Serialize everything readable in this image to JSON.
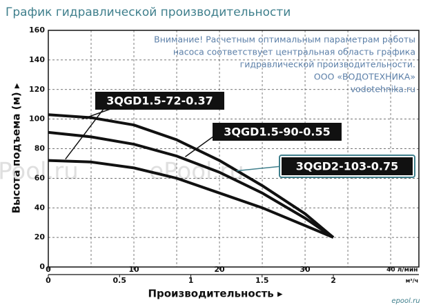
{
  "chart_data": {
    "type": "line",
    "title": "График гидравлической производительности",
    "y_label": "Высота подъема (м) ▸",
    "x_label": "Производительность ▸",
    "x2_unit": "м³/ч",
    "note": [
      "Внимание! Расчетным оптимальным параметрам работы",
      "насоса соответствует центральная область графика",
      "гидравлической производительности.",
      "ООО «ВОДОТЕХНИКА»",
      "vodotehnika.ru"
    ],
    "watermark": "ePool.ru",
    "logo": "epool.ru",
    "x": [
      0,
      5,
      10,
      15,
      20,
      25,
      30,
      33.3
    ],
    "series": [
      {
        "name": "3QGD2-103-0.75",
        "color": "#111111",
        "values": [
          103,
          101,
          96,
          86,
          72,
          55,
          36,
          20
        ]
      },
      {
        "name": "3QGD1.5-90-0.55",
        "color": "#111111",
        "values": [
          91,
          88,
          83,
          75,
          64,
          50,
          33,
          20
        ]
      },
      {
        "name": "3QGD1.5-72-0.37",
        "color": "#111111",
        "values": [
          72,
          71,
          67,
          60,
          50,
          40,
          28,
          20
        ]
      }
    ],
    "xlim": [
      0,
      43.3
    ],
    "xticks": [
      0,
      10,
      20,
      30,
      {
        "value": 40,
        "label": "40 л/мин"
      }
    ],
    "xminorticks": [
      5,
      15,
      25,
      35
    ],
    "x2lim": [
      0,
      2.6
    ],
    "x2ticks": [
      0,
      0.5,
      1,
      1.5,
      2
    ],
    "ylim": [
      0,
      160
    ],
    "yticks": [
      0,
      20,
      40,
      60,
      80,
      100,
      120,
      140,
      160
    ],
    "grid": true
  }
}
